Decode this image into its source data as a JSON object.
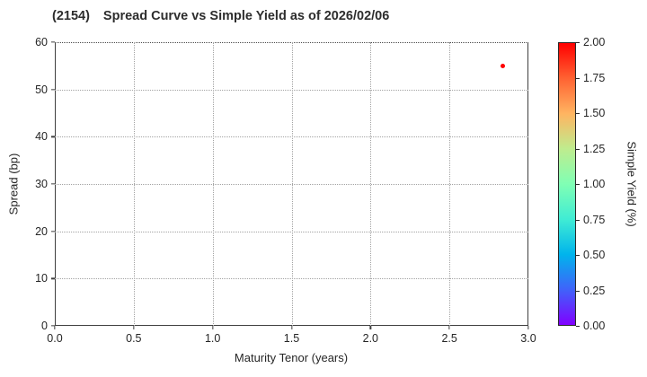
{
  "title": {
    "code": "(2154)",
    "main": "Spread Curve vs Simple Yield as of 2026/02/06"
  },
  "chart_data": {
    "type": "scatter",
    "title": "(2154)  Spread Curve vs Simple Yield as of 2026/02/06",
    "xlabel": "Maturity Tenor (years)",
    "ylabel": "Spread (bp)",
    "xlim": [
      0.0,
      3.0
    ],
    "ylim": [
      0,
      60
    ],
    "xticks": [
      "0.0",
      "0.5",
      "1.0",
      "1.5",
      "2.0",
      "2.5",
      "3.0"
    ],
    "yticks": [
      "0",
      "10",
      "20",
      "30",
      "40",
      "50",
      "60"
    ],
    "grid": "dotted",
    "legend": "none",
    "points": [
      {
        "x": 2.84,
        "y": 55.0,
        "simple_yield": 2.0
      }
    ],
    "colorbar": {
      "label": "Simple Yield (%)",
      "min": 0.0,
      "max": 2.0,
      "ticks": [
        "0.00",
        "0.25",
        "0.50",
        "0.75",
        "1.00",
        "1.25",
        "1.50",
        "1.75",
        "2.00"
      ],
      "colormap": "rainbow",
      "stops": [
        {
          "v": 0.0,
          "c": "#8000ff"
        },
        {
          "v": 0.25,
          "c": "#4062fa"
        },
        {
          "v": 0.5,
          "c": "#00b4ec"
        },
        {
          "v": 0.75,
          "c": "#40ecd4"
        },
        {
          "v": 1.0,
          "c": "#80ffb4"
        },
        {
          "v": 1.25,
          "c": "#bfec8e"
        },
        {
          "v": 1.5,
          "c": "#ffb461"
        },
        {
          "v": 1.75,
          "c": "#ff6232"
        },
        {
          "v": 2.0,
          "c": "#ff0000"
        }
      ]
    },
    "style": {
      "text_color": "#262626",
      "grid_color": "#a3a3a3",
      "spine_color": "#3f3f3f",
      "background": "#ffffff"
    }
  }
}
